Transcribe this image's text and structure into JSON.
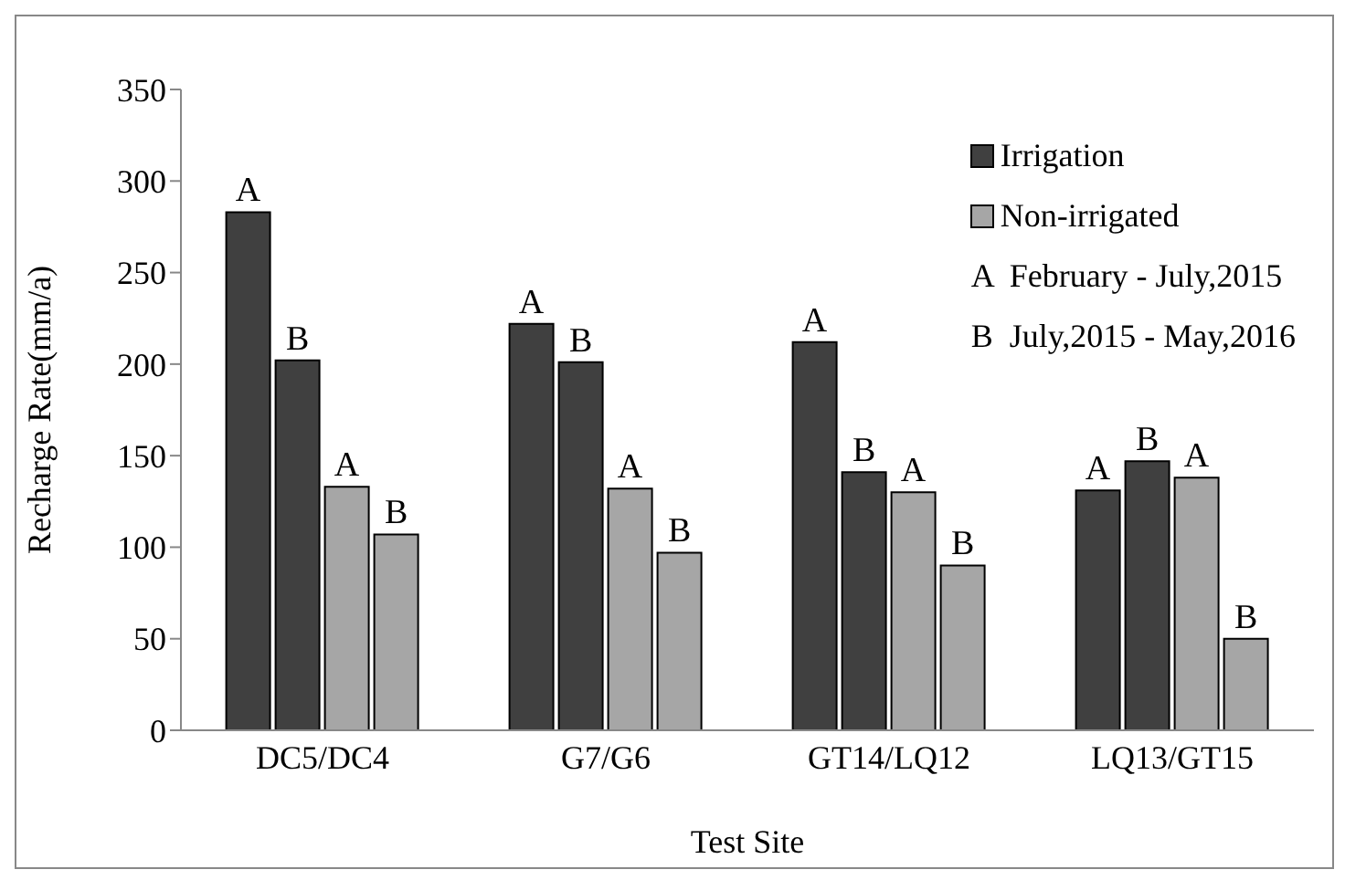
{
  "chart_data": {
    "type": "bar",
    "xlabel": "Test Site",
    "ylabel": "Recharge Rate(mm/a)",
    "categories": [
      "DC5/DC4",
      "G7/G6",
      "GT14/LQ12",
      "LQ13/GT15"
    ],
    "series": [
      {
        "name": "Irrigation",
        "color": "#404040",
        "values": [
          283,
          222,
          212,
          131
        ],
        "value_labels": [
          "A",
          "A",
          "A",
          "A"
        ]
      },
      {
        "color": "#404040",
        "values": [
          202,
          201,
          141,
          147
        ],
        "value_labels": [
          "B",
          "B",
          "B",
          "B"
        ]
      },
      {
        "name": "Non-irrigated",
        "color": "#a6a6a6",
        "values": [
          133,
          132,
          130,
          138
        ],
        "value_labels": [
          "A",
          "A",
          "A",
          "A"
        ]
      },
      {
        "color": "#a6a6a6",
        "values": [
          107,
          97,
          90,
          50
        ],
        "value_labels": [
          "B",
          "B",
          "B",
          "B"
        ]
      }
    ],
    "annotations": [
      "A  February - July,2015",
      "B  July,2015 - May,2016"
    ],
    "ylim": [
      0,
      350
    ],
    "yticks": [
      0,
      50,
      100,
      150,
      200,
      250,
      300,
      350
    ],
    "grid": false,
    "legend": "top right"
  }
}
